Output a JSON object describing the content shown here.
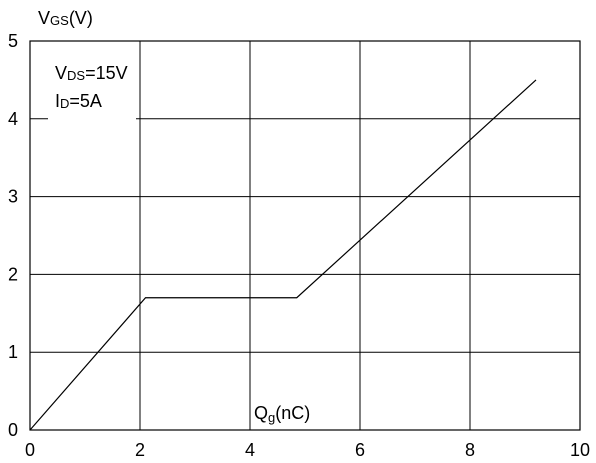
{
  "chart_data": {
    "type": "line",
    "ylabel_main": "V",
    "ylabel_sub": "GS",
    "ylabel_tail": "(V)",
    "xlabel_main": "Q",
    "xlabel_sub": "g",
    "xlabel_tail": "(nC)",
    "annotations": {
      "line1_main": "V",
      "line1_sub": "DS",
      "line1_tail": "=15V",
      "line2_main": "I",
      "line2_sub": "D",
      "line2_tail": "=5A"
    },
    "xlim": [
      0,
      10
    ],
    "ylim": [
      0,
      5
    ],
    "x_ticks": [
      0,
      2,
      4,
      6,
      8,
      10
    ],
    "y_ticks": [
      0,
      1,
      2,
      3,
      4,
      5
    ],
    "x_tick_labels": [
      "0",
      "2",
      "4",
      "6",
      "8",
      "10"
    ],
    "y_tick_labels": [
      "0",
      "1",
      "2",
      "3",
      "4",
      "5"
    ],
    "grid": true,
    "series": [
      {
        "x": [
          0,
          2.1,
          4.85,
          9.2
        ],
        "y": [
          0,
          1.7,
          1.7,
          4.5
        ]
      }
    ]
  }
}
